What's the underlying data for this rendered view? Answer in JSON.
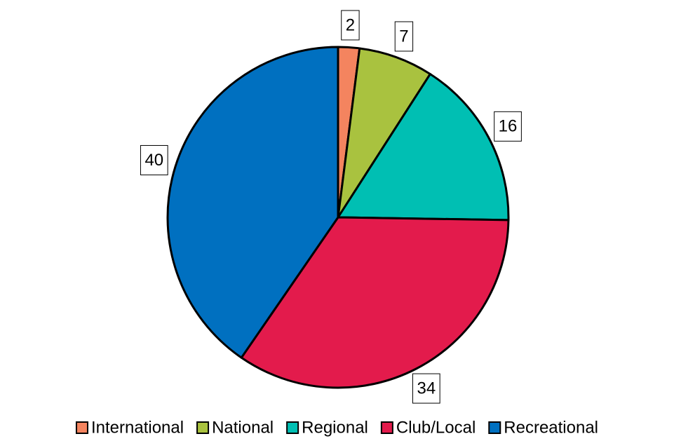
{
  "chart_data": {
    "type": "pie",
    "categories": [
      "International",
      "National",
      "Regional",
      "Club/Local",
      "Recreational"
    ],
    "values": [
      2,
      7,
      16,
      34,
      40
    ],
    "colors": [
      "#f4845f",
      "#a9c23f",
      "#00bfb3",
      "#e31b4c",
      "#0070c0"
    ],
    "legend": "bottom"
  }
}
